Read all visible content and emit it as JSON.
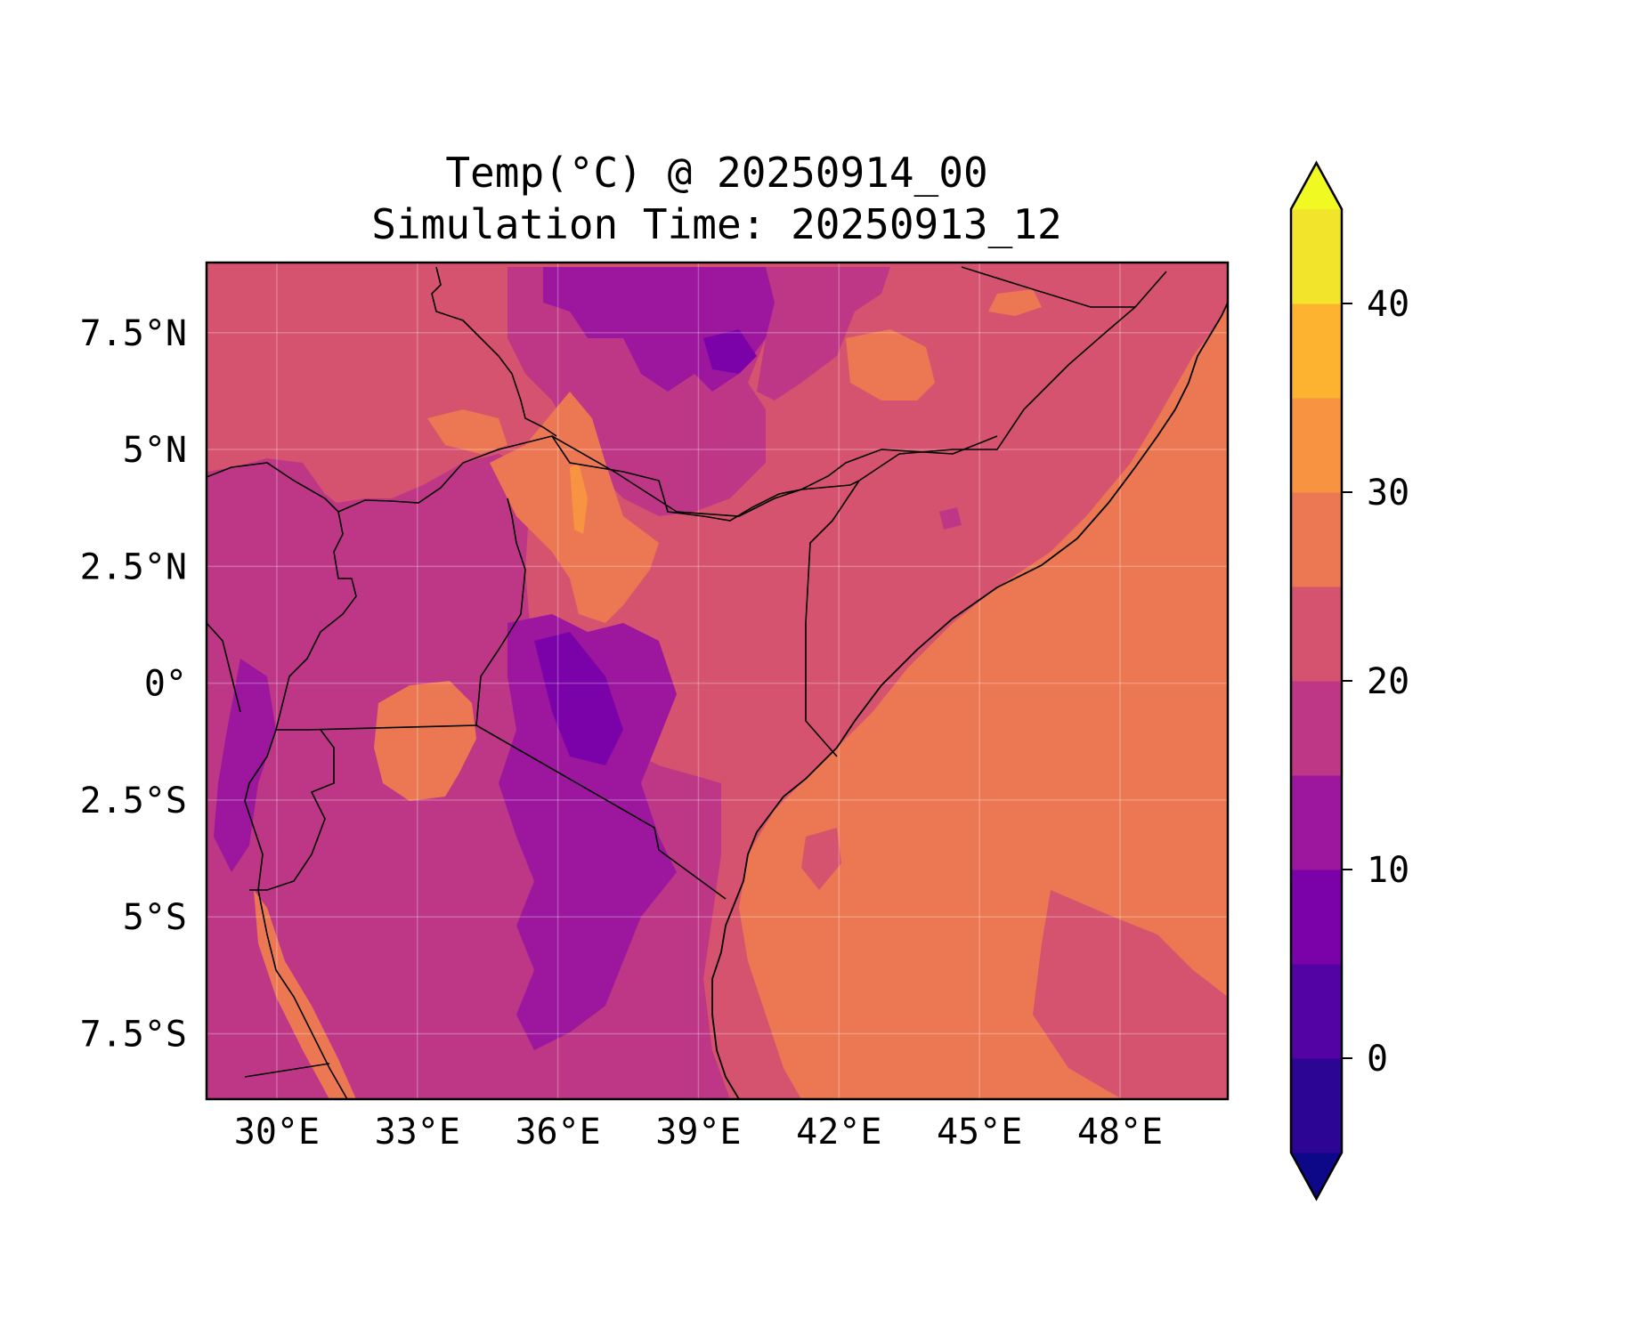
{
  "title": {
    "line1": "Temp(°C) @ 20250914_00",
    "line2": "Simulation Time: 20250913_12"
  },
  "map": {
    "extent": {
      "lon": [
        28.5,
        50.3
      ],
      "lat": [
        -8.9,
        9.0
      ]
    },
    "x_ticks": [
      {
        "value": 30,
        "label": "30°E"
      },
      {
        "value": 33,
        "label": "33°E"
      },
      {
        "value": 36,
        "label": "36°E"
      },
      {
        "value": 39,
        "label": "39°E"
      },
      {
        "value": 42,
        "label": "42°E"
      },
      {
        "value": 45,
        "label": "45°E"
      },
      {
        "value": 48,
        "label": "48°E"
      }
    ],
    "y_ticks": [
      {
        "value": 7.5,
        "label": "7.5°N"
      },
      {
        "value": 5,
        "label": "5°N"
      },
      {
        "value": 2.5,
        "label": "2.5°N"
      },
      {
        "value": 0,
        "label": "0°"
      },
      {
        "value": -2.5,
        "label": "2.5°S"
      },
      {
        "value": -5,
        "label": "5°S"
      },
      {
        "value": -7.5,
        "label": "7.5°S"
      }
    ],
    "gridlines": true
  },
  "colorbar": {
    "range": [
      -5,
      45
    ],
    "step": 5,
    "extend": "both",
    "colors": [
      "#0d0887",
      "#2c0594",
      "#5302a3",
      "#7b02a8",
      "#9c179e",
      "#bd3786",
      "#d5536f",
      "#ec7853",
      "#f89441",
      "#fdb32f",
      "#f2e42b",
      "#f0f921"
    ],
    "ticks": [
      {
        "value": 0,
        "label": "0"
      },
      {
        "value": 10,
        "label": "10"
      },
      {
        "value": 20,
        "label": "20"
      },
      {
        "value": 30,
        "label": "30"
      },
      {
        "value": 40,
        "label": "40"
      }
    ]
  }
}
